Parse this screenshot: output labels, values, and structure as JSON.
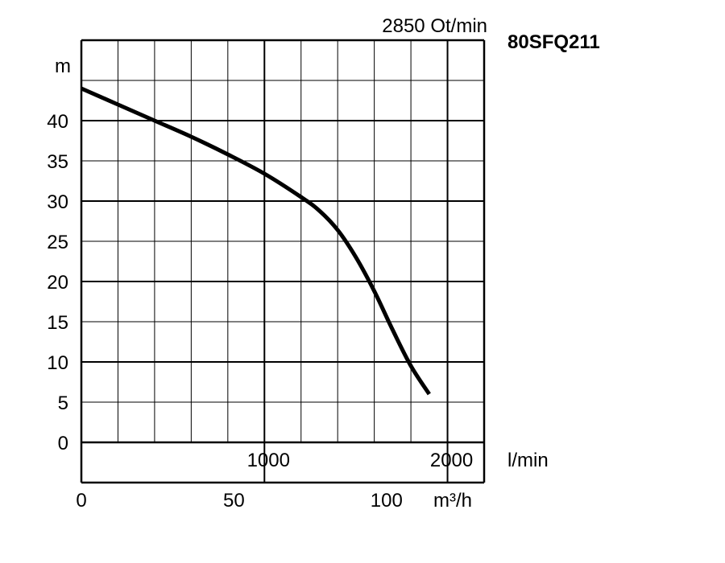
{
  "chart_data": {
    "type": "line",
    "title": "80SFQ211",
    "subtitle": "2850 Ot/min",
    "ylabel": "m",
    "xlabel_lmin": "l/min",
    "xlabel_m3h": "m³/h",
    "ylim": [
      0,
      50
    ],
    "xlim_lmin": [
      0,
      2200
    ],
    "y_ticks": [
      0,
      5,
      10,
      15,
      20,
      25,
      30,
      35,
      40
    ],
    "x_ticks_lmin": [
      1000,
      2000
    ],
    "x_ticks_m3h": [
      0,
      50,
      100
    ],
    "grid": true,
    "series": [
      {
        "x": [
          0,
          200,
          400,
          600,
          800,
          1000,
          1200,
          1300,
          1400,
          1500,
          1600,
          1700,
          1800,
          1900
        ],
        "y": [
          44,
          42,
          40,
          38,
          35.8,
          33.4,
          30.5,
          28.8,
          26.4,
          23,
          18.8,
          14,
          9.5,
          6
        ]
      }
    ]
  }
}
